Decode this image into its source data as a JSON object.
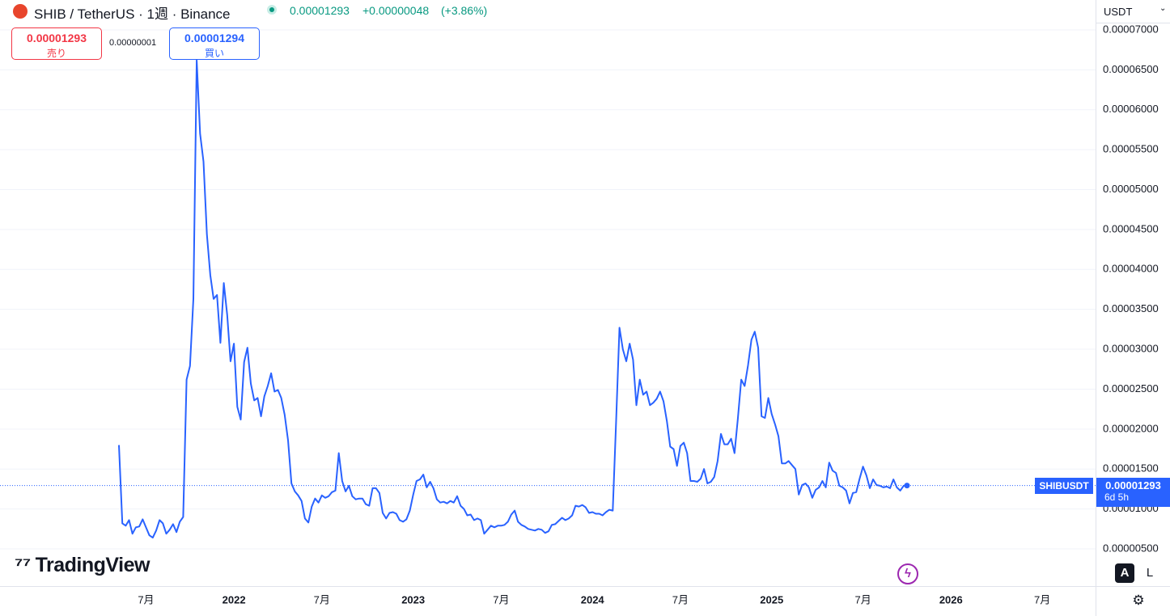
{
  "header": {
    "title": "SHIB / TetherUS · 1週 · Binance",
    "change": "+0.00000048",
    "change_pct": "(+3.86%)",
    "currency": "USDT"
  },
  "order": {
    "sell_price": "0.00001293",
    "sell_label": "売り",
    "spread": "0.00000001",
    "buy_price": "0.00001294",
    "buy_label": "買い"
  },
  "price_tag": {
    "symbol": "SHIBUSDT",
    "countdown": "6d 5h"
  },
  "branding": {
    "logo": "TradingView"
  },
  "controls": {
    "auto": "A",
    "log": "L"
  },
  "chart_data": {
    "type": "line",
    "color": "#2962ff",
    "last_price": 1.293e-05,
    "grid": true,
    "ylim": [
      3.4e-07,
      7.02e-05
    ],
    "yticks": [
      {
        "value": 5e-06,
        "label": "0.00000500"
      },
      {
        "value": 1e-05,
        "label": "0.00001000"
      },
      {
        "value": 1.5e-05,
        "label": "0.00001500"
      },
      {
        "value": 2e-05,
        "label": "0.00002000"
      },
      {
        "value": 2.5e-05,
        "label": "0.00002500"
      },
      {
        "value": 3e-05,
        "label": "0.00003000"
      },
      {
        "value": 3.5e-05,
        "label": "0.00003500"
      },
      {
        "value": 4e-05,
        "label": "0.00004000"
      },
      {
        "value": 4.5e-05,
        "label": "0.00004500"
      },
      {
        "value": 5e-05,
        "label": "0.00005000"
      },
      {
        "value": 5.5e-05,
        "label": "0.00005500"
      },
      {
        "value": 6e-05,
        "label": "0.00006000"
      },
      {
        "value": 6.5e-05,
        "label": "0.00006500"
      },
      {
        "value": 7e-05,
        "label": "0.00007000"
      }
    ],
    "categories": [
      null,
      null,
      null,
      null,
      null,
      null,
      null,
      null,
      "7月",
      null,
      null,
      null,
      null,
      null,
      null,
      null,
      null,
      null,
      null,
      null,
      null,
      null,
      null,
      null,
      null,
      null,
      null,
      null,
      null,
      null,
      null,
      null,
      null,
      null,
      "2022",
      null,
      null,
      null,
      null,
      null,
      null,
      null,
      null,
      null,
      null,
      null,
      null,
      null,
      null,
      null,
      null,
      null,
      null,
      null,
      null,
      null,
      null,
      null,
      null,
      null,
      "7月",
      null,
      null,
      null,
      null,
      null,
      null,
      null,
      null,
      null,
      null,
      null,
      null,
      null,
      null,
      null,
      null,
      null,
      null,
      null,
      null,
      null,
      null,
      null,
      null,
      null,
      null,
      "2023",
      null,
      null,
      null,
      null,
      null,
      null,
      null,
      null,
      null,
      null,
      null,
      null,
      null,
      null,
      null,
      null,
      null,
      null,
      null,
      null,
      null,
      null,
      null,
      null,
      null,
      "7月",
      null,
      null,
      null,
      null,
      null,
      null,
      null,
      null,
      null,
      null,
      null,
      null,
      null,
      null,
      null,
      null,
      null,
      null,
      null,
      null,
      null,
      null,
      null,
      null,
      null,
      null,
      "2024",
      null,
      null,
      null,
      null,
      null,
      null,
      null,
      null,
      null,
      null,
      null,
      null,
      null,
      null,
      null,
      null,
      null,
      null,
      null,
      null,
      null,
      null,
      null,
      null,
      null,
      "7月",
      null,
      null,
      null,
      null,
      null,
      null,
      null,
      null,
      null,
      null,
      null,
      null,
      null,
      null,
      null,
      null,
      null,
      null,
      null,
      null,
      null,
      null,
      null,
      null,
      null,
      null,
      "2025",
      null,
      null,
      null,
      null,
      null,
      null,
      null,
      null,
      null,
      null,
      null,
      null,
      null,
      null,
      null,
      null,
      null,
      null,
      null,
      null,
      null,
      null,
      null,
      null,
      null,
      null,
      "7月",
      null,
      null,
      null,
      null,
      null,
      null,
      null,
      null,
      null,
      null,
      null,
      null,
      null,
      null,
      null,
      null,
      null,
      null,
      null,
      null,
      null,
      null,
      null,
      null,
      null,
      "2026",
      null,
      null,
      null,
      null,
      null,
      null,
      null,
      null,
      null,
      null,
      null,
      null,
      null,
      null,
      null,
      null,
      null,
      null,
      null,
      null,
      null,
      null,
      null,
      null,
      null,
      null,
      "7月"
    ],
    "values": [
      1.8e-05,
      8.2e-06,
      7.9e-06,
      8.6e-06,
      6.9e-06,
      7.7e-06,
      7.8e-06,
      8.7e-06,
      7.7e-06,
      6.7e-06,
      6.4e-06,
      7.3e-06,
      8.6e-06,
      8.2e-06,
      6.9e-06,
      7.4e-06,
      8.1e-06,
      7.1e-06,
      8.4e-06,
      9e-06,
      2.62e-05,
      2.79e-05,
      3.63e-05,
      6.62e-05,
      5.7e-05,
      5.35e-05,
      4.44e-05,
      3.93e-05,
      3.63e-05,
      3.68e-05,
      3.08e-05,
      3.83e-05,
      3.43e-05,
      2.85e-05,
      3.07e-05,
      2.28e-05,
      2.12e-05,
      2.84e-05,
      3.02e-05,
      2.57e-05,
      2.36e-05,
      2.39e-05,
      2.16e-05,
      2.41e-05,
      2.54e-05,
      2.7e-05,
      2.47e-05,
      2.49e-05,
      2.39e-05,
      2.18e-05,
      1.86e-05,
      1.32e-05,
      1.22e-05,
      1.17e-05,
      1.1e-05,
      8.8e-06,
      8.3e-06,
      1.03e-05,
      1.13e-05,
      1.08e-05,
      1.17e-05,
      1.14e-05,
      1.16e-05,
      1.21e-05,
      1.23e-05,
      1.7e-05,
      1.35e-05,
      1.22e-05,
      1.29e-05,
      1.16e-05,
      1.12e-05,
      1.13e-05,
      1.13e-05,
      1.06e-05,
      1.04e-05,
      1.26e-05,
      1.26e-05,
      1.2e-05,
      9.5e-06,
      8.8e-06,
      9.5e-06,
      9.6e-06,
      9.4e-06,
      8.6e-06,
      8.4e-06,
      8.7e-06,
      9.8e-06,
      1.18e-05,
      1.35e-05,
      1.37e-05,
      1.43e-05,
      1.27e-05,
      1.34e-05,
      1.26e-05,
      1.12e-05,
      1.08e-05,
      1.09e-05,
      1.07e-05,
      1.1e-05,
      1.08e-05,
      1.16e-05,
      1.04e-05,
      1e-05,
      9.2e-06,
      9.3e-06,
      8.6e-06,
      8.8e-06,
      8.6e-06,
      6.9e-06,
      7.4e-06,
      7.9e-06,
      7.7e-06,
      7.9e-06,
      7.9e-06,
      8e-06,
      8.4e-06,
      9.3e-06,
      9.8e-06,
      8.4e-06,
      8e-06,
      7.8e-06,
      7.5e-06,
      7.4e-06,
      7.3e-06,
      7.5e-06,
      7.4e-06,
      7e-06,
      7.2e-06,
      8e-06,
      8.1e-06,
      8.5e-06,
      8.9e-06,
      8.6e-06,
      8.8e-06,
      9.2e-06,
      1.04e-05,
      1.03e-05,
      1.05e-05,
      1.02e-05,
      9.5e-06,
      9.6e-06,
      9.4e-06,
      9.4e-06,
      9.2e-06,
      9.6e-06,
      9.9e-06,
      9.8e-06,
      2.11e-05,
      3.27e-05,
      3e-05,
      2.85e-05,
      3.07e-05,
      2.87e-05,
      2.3e-05,
      2.62e-05,
      2.43e-05,
      2.47e-05,
      2.3e-05,
      2.33e-05,
      2.38e-05,
      2.47e-05,
      2.35e-05,
      2.1e-05,
      1.78e-05,
      1.75e-05,
      1.54e-05,
      1.79e-05,
      1.83e-05,
      1.7e-05,
      1.35e-05,
      1.35e-05,
      1.34e-05,
      1.38e-05,
      1.5e-05,
      1.32e-05,
      1.34e-05,
      1.4e-05,
      1.6e-05,
      1.94e-05,
      1.81e-05,
      1.81e-05,
      1.88e-05,
      1.7e-05,
      2.13e-05,
      2.62e-05,
      2.54e-05,
      2.8e-05,
      3.12e-05,
      3.22e-05,
      3.02e-05,
      2.16e-05,
      2.14e-05,
      2.39e-05,
      2.19e-05,
      2.06e-05,
      1.91e-05,
      1.57e-05,
      1.57e-05,
      1.6e-05,
      1.55e-05,
      1.5e-05,
      1.18e-05,
      1.3e-05,
      1.32e-05,
      1.27e-05,
      1.14e-05,
      1.24e-05,
      1.27e-05,
      1.35e-05,
      1.27e-05,
      1.58e-05,
      1.48e-05,
      1.45e-05,
      1.29e-05,
      1.27e-05,
      1.23e-05,
      1.07e-05,
      1.2e-05,
      1.21e-05,
      1.38e-05,
      1.53e-05,
      1.42e-05,
      1.26e-05,
      1.37e-05,
      1.3e-05,
      1.29e-05,
      1.27e-05,
      1.28e-05,
      1.26e-05,
      1.37e-05,
      1.27e-05,
      1.23e-05,
      1.29e-05,
      1.293e-05,
      null,
      null,
      null,
      null,
      null,
      null,
      null,
      null,
      null,
      null,
      null,
      null,
      null,
      null,
      null,
      null,
      null,
      null,
      null,
      null,
      null,
      null,
      null,
      null,
      null,
      null,
      null,
      null,
      null,
      null,
      null,
      null,
      null,
      null,
      null,
      null,
      null,
      null,
      null,
      null
    ]
  }
}
